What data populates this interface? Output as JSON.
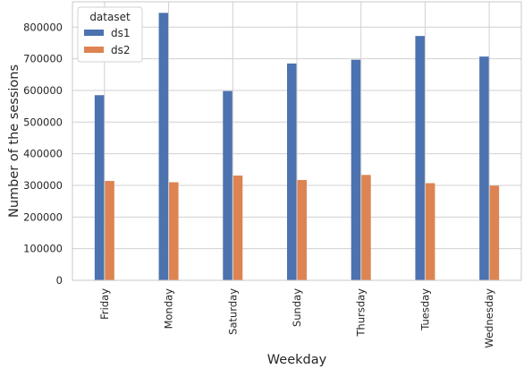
{
  "chart_data": {
    "type": "bar",
    "title": "",
    "xlabel": "Weekday",
    "ylabel": "Number of the sessions",
    "categories": [
      "Friday",
      "Monday",
      "Saturday",
      "Sunday",
      "Thursday",
      "Tuesday",
      "Wednesday"
    ],
    "series": [
      {
        "name": "ds1",
        "color": "#4c72b0",
        "values": [
          585000,
          845000,
          598000,
          685000,
          697000,
          772000,
          707000
        ]
      },
      {
        "name": "ds2",
        "color": "#dd8452",
        "values": [
          314000,
          310000,
          331000,
          317000,
          333000,
          307000,
          299000
        ]
      }
    ],
    "ylim": [
      0,
      880000
    ],
    "yticks": [
      0,
      100000,
      200000,
      300000,
      400000,
      500000,
      600000,
      700000,
      800000
    ],
    "ytick_labels": [
      "0",
      "100000",
      "200000",
      "300000",
      "400000",
      "500000",
      "600000",
      "700000",
      "800000"
    ],
    "grid": true,
    "legend": {
      "title": "dataset",
      "placement": "top-left"
    }
  }
}
